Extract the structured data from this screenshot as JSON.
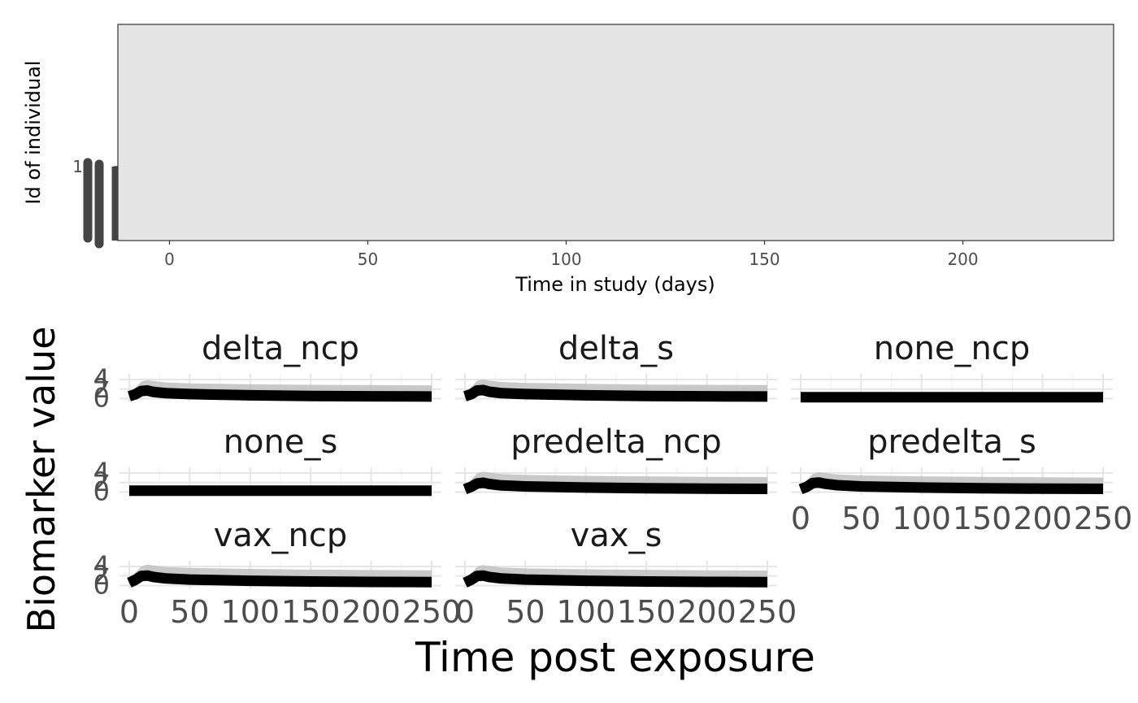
{
  "chart_data": [
    {
      "type": "scatter",
      "panel": "top",
      "xlabel": "Time in study (days)",
      "ylabel": "Id of individual",
      "x_ticks": [
        0,
        50,
        100,
        150,
        200
      ],
      "xlim": [
        -13,
        238
      ],
      "y_ticks": [
        "1"
      ],
      "panel_background": "#e5e5e5",
      "mark_color": "#454545",
      "grid": false
    },
    {
      "type": "line",
      "panel": "bottom",
      "layout": "facet_wrap 3 columns",
      "xlabel": "Time post exposure",
      "ylabel": "Biomarker value",
      "x_ticks": [
        0,
        50,
        100,
        150,
        200,
        250
      ],
      "xlim": [
        0,
        250
      ],
      "y_ticks": [
        0,
        2,
        4
      ],
      "ylim": [
        -0.6,
        5.2
      ],
      "line_color": "#000000",
      "ribbon_color": "#bfbfbf",
      "grid": true,
      "facets": [
        {
          "name": "delta_ncp",
          "x": [
            0,
            5,
            10,
            15,
            20,
            30,
            50,
            100,
            150,
            200,
            250
          ],
          "y": [
            0.5,
            0.9,
            1.6,
            1.7,
            1.4,
            1.15,
            0.95,
            0.7,
            0.55,
            0.48,
            0.45
          ],
          "upper": [
            0.8,
            2.3,
            3.6,
            3.9,
            3.7,
            3.4,
            3.2,
            3.0,
            2.9,
            2.85,
            2.8
          ]
        },
        {
          "name": "delta_s",
          "x": [
            0,
            5,
            10,
            15,
            20,
            30,
            50,
            100,
            150,
            200,
            250
          ],
          "y": [
            0.5,
            0.9,
            1.7,
            1.8,
            1.45,
            1.15,
            0.95,
            0.7,
            0.55,
            0.48,
            0.45
          ],
          "upper": [
            0.8,
            2.4,
            3.7,
            4.0,
            3.8,
            3.5,
            3.3,
            3.1,
            2.95,
            2.9,
            2.85
          ]
        },
        {
          "name": "none_ncp",
          "x": [
            0,
            250
          ],
          "y": [
            0.3,
            0.3
          ],
          "upper": [
            0.3,
            0.3
          ]
        },
        {
          "name": "none_s",
          "x": [
            0,
            250
          ],
          "y": [
            0.3,
            0.3
          ],
          "upper": [
            0.3,
            0.3
          ]
        },
        {
          "name": "predelta_ncp",
          "x": [
            0,
            5,
            10,
            15,
            20,
            30,
            50,
            100,
            150,
            200,
            250
          ],
          "y": [
            0.6,
            1.1,
            1.8,
            1.95,
            1.7,
            1.4,
            1.2,
            0.95,
            0.8,
            0.72,
            0.68
          ],
          "upper": [
            0.9,
            2.6,
            3.9,
            4.3,
            4.1,
            3.8,
            3.6,
            3.4,
            3.3,
            3.2,
            3.15
          ]
        },
        {
          "name": "predelta_s",
          "x": [
            0,
            5,
            10,
            15,
            20,
            30,
            50,
            100,
            150,
            200,
            250
          ],
          "y": [
            0.6,
            1.1,
            1.9,
            2.0,
            1.75,
            1.45,
            1.2,
            0.95,
            0.8,
            0.72,
            0.68
          ],
          "upper": [
            0.9,
            2.5,
            3.8,
            4.2,
            4.0,
            3.7,
            3.5,
            3.3,
            3.2,
            3.1,
            3.05
          ]
        },
        {
          "name": "vax_ncp",
          "x": [
            0,
            5,
            10,
            15,
            20,
            30,
            50,
            100,
            150,
            200,
            250
          ],
          "y": [
            0.6,
            1.2,
            2.0,
            2.1,
            1.8,
            1.5,
            1.25,
            1.0,
            0.85,
            0.77,
            0.72
          ],
          "upper": [
            0.9,
            2.7,
            4.0,
            4.4,
            4.2,
            3.9,
            3.7,
            3.5,
            3.35,
            3.25,
            3.2
          ]
        },
        {
          "name": "vax_s",
          "x": [
            0,
            5,
            10,
            15,
            20,
            30,
            50,
            100,
            150,
            200,
            250
          ],
          "y": [
            0.6,
            1.2,
            2.0,
            2.1,
            1.8,
            1.5,
            1.25,
            1.0,
            0.85,
            0.77,
            0.72
          ],
          "upper": [
            0.9,
            2.6,
            3.9,
            4.3,
            4.1,
            3.8,
            3.6,
            3.4,
            3.3,
            3.2,
            3.15
          ]
        }
      ]
    }
  ]
}
